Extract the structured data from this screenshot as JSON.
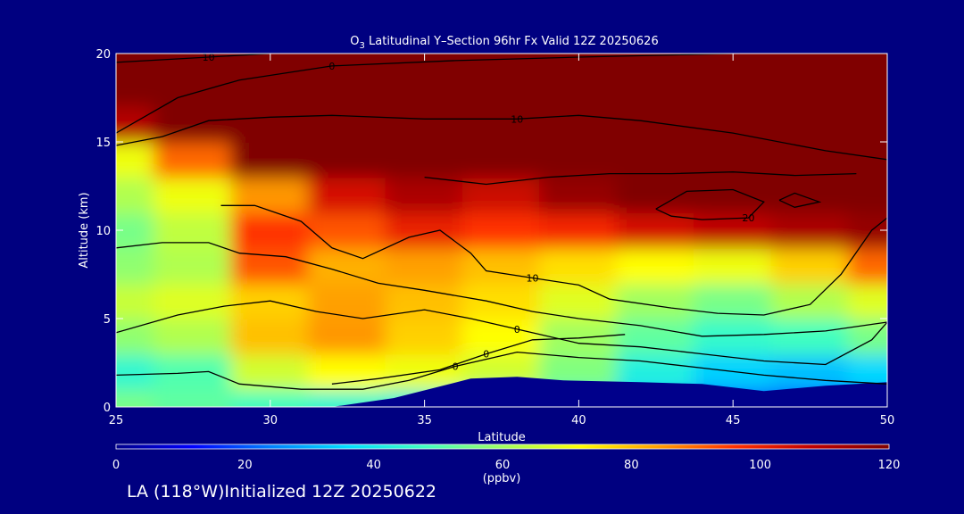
{
  "chart_data": {
    "type": "heatmap",
    "title_main": "O",
    "title_sub": "3",
    "title_rest": " Latitudinal Y–Section 96hr  Fx Valid 12Z 20250626",
    "xlabel": "Latitude",
    "ylabel": "Altitude (km)",
    "xlim": [
      25,
      50
    ],
    "ylim": [
      0,
      20
    ],
    "xticks": [
      "25",
      "30",
      "35",
      "40",
      "45",
      "50"
    ],
    "yticks": [
      "0",
      "5",
      "10",
      "15",
      "20"
    ],
    "colorbar": {
      "ticks": [
        "0",
        "20",
        "40",
        "60",
        "80",
        "100",
        "120"
      ],
      "range": [
        0,
        120
      ],
      "unit_label": "(ppbv)",
      "colors": [
        "#00008b",
        "#0000ff",
        "#0080ff",
        "#00e0ff",
        "#40ffc0",
        "#a0ff60",
        "#ffff00",
        "#ffa000",
        "#ff3000",
        "#c00000",
        "#800000"
      ]
    },
    "z_lat": [
      25,
      27.5,
      30,
      32.5,
      35,
      37.5,
      40,
      42.5,
      45,
      47.5,
      50
    ],
    "z_alt": [
      0,
      2,
      4,
      6,
      8,
      10,
      12,
      14,
      16,
      18,
      20
    ],
    "z_values": [
      [
        55,
        52,
        48,
        45,
        42,
        40,
        38,
        30,
        20,
        18,
        22
      ],
      [
        45,
        50,
        66,
        72,
        70,
        66,
        56,
        42,
        34,
        32,
        35
      ],
      [
        58,
        62,
        80,
        85,
        78,
        72,
        60,
        52,
        46,
        48,
        55
      ],
      [
        65,
        68,
        78,
        84,
        80,
        76,
        68,
        60,
        55,
        62,
        68
      ],
      [
        58,
        62,
        92,
        82,
        84,
        80,
        76,
        72,
        70,
        78,
        90
      ],
      [
        55,
        64,
        96,
        92,
        100,
        96,
        98,
        104,
        108,
        112,
        116
      ],
      [
        62,
        70,
        85,
        104,
        112,
        106,
        116,
        120,
        120,
        120,
        120
      ],
      [
        70,
        90,
        120,
        120,
        120,
        120,
        120,
        120,
        120,
        120,
        120
      ],
      [
        110,
        120,
        120,
        120,
        120,
        120,
        120,
        120,
        120,
        120,
        120
      ],
      [
        120,
        120,
        120,
        120,
        120,
        120,
        120,
        120,
        120,
        120,
        120
      ],
      [
        120,
        120,
        120,
        120,
        120,
        120,
        120,
        120,
        120,
        120,
        120
      ]
    ],
    "terrain": [
      [
        25,
        0
      ],
      [
        32,
        0
      ],
      [
        34,
        0.5
      ],
      [
        36.5,
        1.6
      ],
      [
        38,
        1.7
      ],
      [
        39.5,
        1.5
      ],
      [
        42,
        1.4
      ],
      [
        44,
        1.3
      ],
      [
        46,
        0.9
      ],
      [
        48,
        1.2
      ],
      [
        50,
        1.4
      ],
      [
        50,
        0
      ],
      [
        25,
        0
      ]
    ],
    "contours": [
      {
        "label": "10",
        "points": [
          [
            25,
            14.8
          ],
          [
            26.5,
            15.3
          ],
          [
            28,
            16.2
          ],
          [
            30,
            16.4
          ],
          [
            32,
            16.5
          ],
          [
            35,
            16.3
          ],
          [
            38,
            16.3
          ],
          [
            40,
            16.5
          ],
          [
            42,
            16.2
          ],
          [
            45,
            15.5
          ],
          [
            48,
            14.5
          ],
          [
            50,
            14.0
          ]
        ]
      },
      {
        "label": "0",
        "points": [
          [
            25,
            15.5
          ],
          [
            27,
            17.5
          ],
          [
            29,
            18.5
          ],
          [
            32,
            19.3
          ],
          [
            36,
            19.6
          ],
          [
            40,
            19.8
          ],
          [
            45,
            20
          ]
        ]
      },
      {
        "label": "10",
        "points": [
          [
            25,
            19.5
          ],
          [
            28,
            19.8
          ],
          [
            30,
            20
          ]
        ]
      },
      {
        "label": "10",
        "points": [
          [
            28.4,
            11.4
          ],
          [
            29.5,
            11.4
          ],
          [
            31,
            10.5
          ],
          [
            32,
            9.0
          ],
          [
            33,
            8.4
          ],
          [
            34.5,
            9.6
          ],
          [
            35.5,
            10
          ],
          [
            36.5,
            8.7
          ],
          [
            37,
            7.7
          ],
          [
            38.5,
            7.3
          ],
          [
            40,
            6.9
          ],
          [
            41,
            6.1
          ],
          [
            43,
            5.6
          ],
          [
            44.5,
            5.3
          ],
          [
            46,
            5.2
          ],
          [
            47.5,
            5.8
          ],
          [
            48.5,
            7.5
          ],
          [
            49.5,
            10.0
          ],
          [
            50,
            10.7
          ]
        ]
      },
      {
        "label": "",
        "points": [
          [
            35,
            13.0
          ],
          [
            37,
            12.6
          ],
          [
            39,
            13.0
          ],
          [
            41,
            13.2
          ],
          [
            43,
            13.2
          ],
          [
            45,
            13.3
          ],
          [
            47,
            13.1
          ],
          [
            49,
            13.2
          ]
        ]
      },
      {
        "label": "20",
        "points": [
          [
            42.5,
            11.2
          ],
          [
            43.5,
            12.2
          ],
          [
            45,
            12.3
          ],
          [
            46,
            11.6
          ],
          [
            45.5,
            10.7
          ],
          [
            44,
            10.6
          ],
          [
            43,
            10.8
          ],
          [
            42.5,
            11.2
          ]
        ]
      },
      {
        "label": "",
        "points": [
          [
            46.5,
            11.7
          ],
          [
            47,
            12.1
          ],
          [
            47.8,
            11.6
          ],
          [
            47,
            11.3
          ],
          [
            46.5,
            11.7
          ]
        ]
      },
      {
        "label": "",
        "points": [
          [
            25,
            9.0
          ],
          [
            26.5,
            9.3
          ],
          [
            28,
            9.3
          ],
          [
            29,
            8.7
          ],
          [
            30.5,
            8.5
          ],
          [
            32,
            7.8
          ],
          [
            33.5,
            7.0
          ],
          [
            35,
            6.6
          ],
          [
            37,
            6.0
          ],
          [
            38.5,
            5.4
          ],
          [
            40,
            5.0
          ],
          [
            42,
            4.6
          ],
          [
            44,
            4.0
          ],
          [
            46,
            4.1
          ],
          [
            48,
            4.3
          ],
          [
            50,
            4.8
          ]
        ]
      },
      {
        "label": "0",
        "points": [
          [
            25,
            4.2
          ],
          [
            27,
            5.2
          ],
          [
            28.5,
            5.7
          ],
          [
            30,
            6.0
          ],
          [
            31.5,
            5.4
          ],
          [
            33,
            5.0
          ],
          [
            35,
            5.5
          ],
          [
            36.5,
            5.0
          ],
          [
            38,
            4.4
          ],
          [
            40,
            3.6
          ],
          [
            42,
            3.4
          ],
          [
            44,
            3.0
          ],
          [
            46,
            2.6
          ],
          [
            48,
            2.4
          ],
          [
            49.5,
            3.8
          ],
          [
            50,
            4.8
          ]
        ]
      },
      {
        "label": "0",
        "points": [
          [
            25,
            1.8
          ],
          [
            27,
            1.9
          ],
          [
            28,
            2.0
          ],
          [
            29,
            1.3
          ],
          [
            31,
            1.0
          ],
          [
            33,
            1.0
          ],
          [
            34.5,
            1.5
          ],
          [
            36,
            2.3
          ],
          [
            38,
            3.1
          ],
          [
            40,
            2.8
          ],
          [
            42,
            2.6
          ],
          [
            44,
            2.2
          ],
          [
            46,
            1.8
          ],
          [
            48,
            1.5
          ],
          [
            50,
            1.3
          ]
        ]
      },
      {
        "label": "0",
        "points": [
          [
            32,
            1.3
          ],
          [
            33.5,
            1.6
          ],
          [
            35.5,
            2.1
          ],
          [
            37,
            3.0
          ],
          [
            38.5,
            3.8
          ],
          [
            40,
            3.9
          ],
          [
            41.5,
            4.1
          ]
        ]
      }
    ]
  },
  "footer": "LA (118°W)Initialized 12Z 20250622"
}
